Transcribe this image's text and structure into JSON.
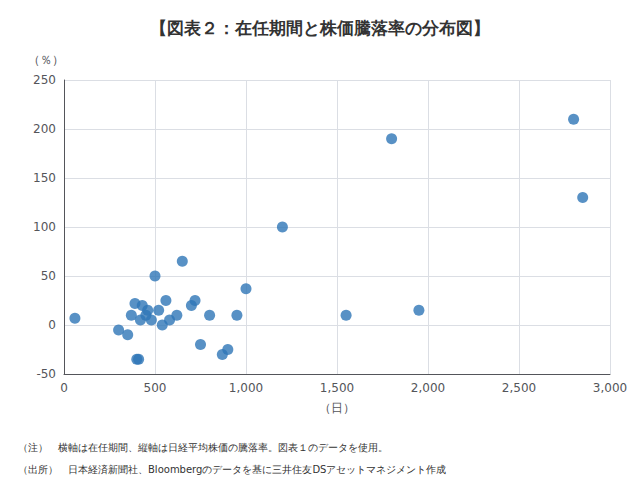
{
  "chart_data": {
    "type": "scatter",
    "title": "【図表２：在任期間と株価騰落率の分布図】",
    "xlabel": "（日）",
    "ylabel": "（％）",
    "x": [
      60,
      300,
      350,
      370,
      390,
      400,
      410,
      420,
      430,
      450,
      460,
      480,
      500,
      520,
      540,
      560,
      580,
      620,
      650,
      700,
      720,
      750,
      800,
      870,
      900,
      950,
      1000,
      1200,
      1550,
      1800,
      1950,
      2800,
      2850
    ],
    "values": [
      7,
      -5,
      -10,
      10,
      22,
      -35,
      -35,
      5,
      20,
      10,
      15,
      5,
      50,
      15,
      0,
      25,
      5,
      10,
      65,
      20,
      25,
      -20,
      10,
      -30,
      -25,
      10,
      37,
      100,
      10,
      190,
      15,
      210,
      130
    ],
    "color": "#2e75b6",
    "xlim": [
      0,
      3000
    ],
    "ylim": [
      -50,
      250
    ],
    "xticks": [
      0,
      500,
      {
        "value": 1000,
        "label": "1,000"
      },
      {
        "value": 1500,
        "label": "1,500"
      },
      {
        "value": 2000,
        "label": "2,000"
      },
      {
        "value": 2500,
        "label": "2,500"
      },
      {
        "value": 3000,
        "label": "3,000"
      }
    ],
    "yticks": [
      -50,
      0,
      50,
      100,
      150,
      200,
      250
    ],
    "grid": true,
    "annotations": [
      "（注）　横軸は在任期間、縦軸は日経平均株価の騰落率。図表１のデータを使用。",
      "（出所）　日本経済新聞社、Bloombergのデータを基に三井住友DSアセットマネジメント作成"
    ]
  }
}
